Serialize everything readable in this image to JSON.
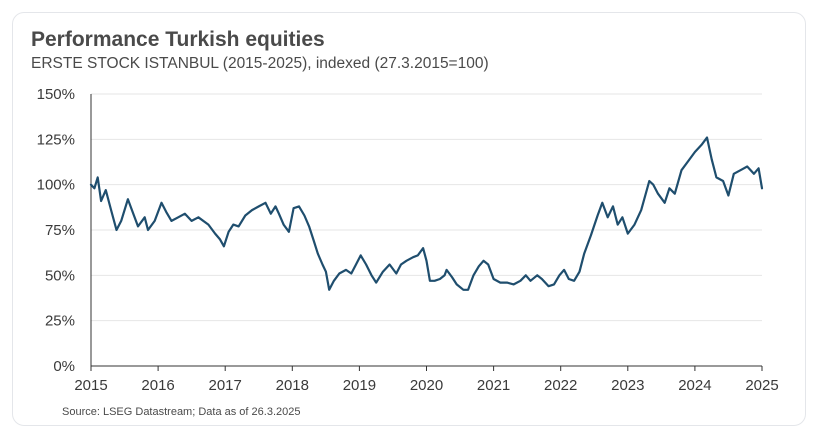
{
  "title": "Performance Turkish equities",
  "subtitle": "ERSTE STOCK ISTANBUL (2015-2025), indexed (27.3.2015=100)",
  "source": "Source: LSEG Datastream; Data as of 26.3.2025",
  "colors": {
    "line": "#1f4e6e",
    "grid": "#e6e6e6",
    "axis": "#333333"
  },
  "chart_data": {
    "type": "line",
    "title": "Performance Turkish equities",
    "subtitle": "ERSTE STOCK ISTANBUL (2015-2025), indexed (27.3.2015=100)",
    "xlabel": "",
    "ylabel": "",
    "xlim": [
      2015,
      2025
    ],
    "ylim": [
      0,
      150
    ],
    "grid": "horizontal",
    "legend": "none",
    "x_ticks": [
      "2015",
      "2016",
      "2017",
      "2018",
      "2019",
      "2020",
      "2021",
      "2022",
      "2023",
      "2024",
      "2025"
    ],
    "y_ticks": [
      "0%",
      "25%",
      "50%",
      "75%",
      "100%",
      "125%",
      "150%"
    ],
    "series": [
      {
        "values": [
          [
            2015.0,
            100
          ],
          [
            2015.05,
            98
          ],
          [
            2015.1,
            104
          ],
          [
            2015.15,
            91
          ],
          [
            2015.22,
            97
          ],
          [
            2015.3,
            86
          ],
          [
            2015.38,
            75
          ],
          [
            2015.45,
            80
          ],
          [
            2015.55,
            92
          ],
          [
            2015.62,
            85
          ],
          [
            2015.7,
            77
          ],
          [
            2015.8,
            82
          ],
          [
            2015.85,
            75
          ],
          [
            2015.95,
            80
          ],
          [
            2016.05,
            90
          ],
          [
            2016.12,
            85
          ],
          [
            2016.2,
            80
          ],
          [
            2016.3,
            82
          ],
          [
            2016.4,
            84
          ],
          [
            2016.5,
            80
          ],
          [
            2016.6,
            82
          ],
          [
            2016.75,
            78
          ],
          [
            2016.85,
            73
          ],
          [
            2016.92,
            70
          ],
          [
            2016.98,
            66
          ],
          [
            2017.05,
            74
          ],
          [
            2017.12,
            78
          ],
          [
            2017.2,
            77
          ],
          [
            2017.3,
            83
          ],
          [
            2017.4,
            86
          ],
          [
            2017.5,
            88
          ],
          [
            2017.6,
            90
          ],
          [
            2017.68,
            84
          ],
          [
            2017.75,
            88
          ],
          [
            2017.8,
            84
          ],
          [
            2017.87,
            78
          ],
          [
            2017.95,
            74
          ],
          [
            2018.02,
            87
          ],
          [
            2018.1,
            88
          ],
          [
            2018.18,
            83
          ],
          [
            2018.25,
            77
          ],
          [
            2018.32,
            69
          ],
          [
            2018.38,
            62
          ],
          [
            2018.45,
            56
          ],
          [
            2018.5,
            52
          ],
          [
            2018.55,
            42
          ],
          [
            2018.62,
            47
          ],
          [
            2018.7,
            51
          ],
          [
            2018.8,
            53
          ],
          [
            2018.88,
            51
          ],
          [
            2018.95,
            56
          ],
          [
            2019.02,
            61
          ],
          [
            2019.1,
            56
          ],
          [
            2019.18,
            50
          ],
          [
            2019.25,
            46
          ],
          [
            2019.35,
            52
          ],
          [
            2019.45,
            56
          ],
          [
            2019.55,
            51
          ],
          [
            2019.62,
            56
          ],
          [
            2019.7,
            58
          ],
          [
            2019.8,
            60
          ],
          [
            2019.87,
            61
          ],
          [
            2019.95,
            65
          ],
          [
            2020.0,
            58
          ],
          [
            2020.05,
            47
          ],
          [
            2020.12,
            47
          ],
          [
            2020.2,
            48
          ],
          [
            2020.27,
            50
          ],
          [
            2020.3,
            53
          ],
          [
            2020.38,
            49
          ],
          [
            2020.45,
            45
          ],
          [
            2020.55,
            42
          ],
          [
            2020.62,
            42
          ],
          [
            2020.7,
            50
          ],
          [
            2020.78,
            55
          ],
          [
            2020.85,
            58
          ],
          [
            2020.92,
            56
          ],
          [
            2021.0,
            48
          ],
          [
            2021.1,
            46
          ],
          [
            2021.2,
            46
          ],
          [
            2021.3,
            45
          ],
          [
            2021.4,
            47
          ],
          [
            2021.48,
            50
          ],
          [
            2021.55,
            47
          ],
          [
            2021.65,
            50
          ],
          [
            2021.72,
            48
          ],
          [
            2021.82,
            44
          ],
          [
            2021.9,
            45
          ],
          [
            2021.98,
            50
          ],
          [
            2022.05,
            53
          ],
          [
            2022.12,
            48
          ],
          [
            2022.2,
            47
          ],
          [
            2022.28,
            52
          ],
          [
            2022.35,
            62
          ],
          [
            2022.45,
            72
          ],
          [
            2022.55,
            83
          ],
          [
            2022.62,
            90
          ],
          [
            2022.7,
            82
          ],
          [
            2022.78,
            88
          ],
          [
            2022.85,
            78
          ],
          [
            2022.92,
            82
          ],
          [
            2023.0,
            73
          ],
          [
            2023.1,
            78
          ],
          [
            2023.2,
            86
          ],
          [
            2023.32,
            102
          ],
          [
            2023.38,
            100
          ],
          [
            2023.45,
            95
          ],
          [
            2023.55,
            90
          ],
          [
            2023.62,
            98
          ],
          [
            2023.7,
            95
          ],
          [
            2023.8,
            108
          ],
          [
            2023.9,
            113
          ],
          [
            2024.0,
            118
          ],
          [
            2024.1,
            122
          ],
          [
            2024.18,
            126
          ],
          [
            2024.25,
            114
          ],
          [
            2024.32,
            104
          ],
          [
            2024.42,
            102
          ],
          [
            2024.5,
            94
          ],
          [
            2024.58,
            106
          ],
          [
            2024.68,
            108
          ],
          [
            2024.78,
            110
          ],
          [
            2024.88,
            106
          ],
          [
            2024.95,
            109
          ],
          [
            2025.0,
            98
          ]
        ]
      }
    ]
  }
}
